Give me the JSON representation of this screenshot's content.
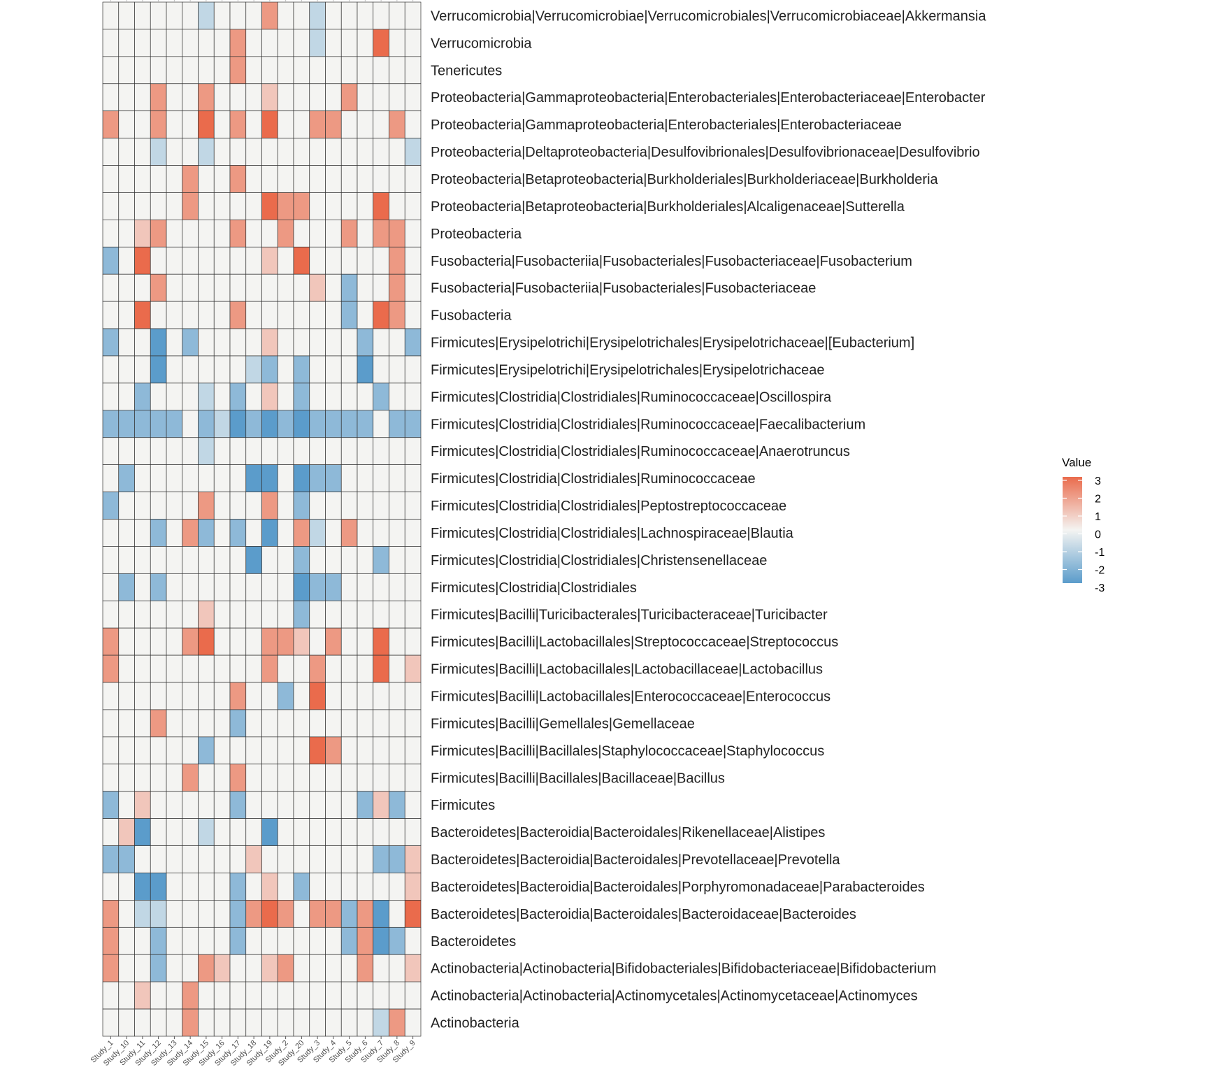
{
  "chart_data": {
    "type": "heatmap",
    "columns": [
      "Study_1",
      "Study_10",
      "Study_11",
      "Study_12",
      "Study_13",
      "Study_14",
      "Study_15",
      "Study_16",
      "Study_17",
      "Study_18",
      "Study_19",
      "Study_2",
      "Study_20",
      "Study_3",
      "Study_4",
      "Study_5",
      "Study_6",
      "Study_7",
      "Study_8",
      "Study_9"
    ],
    "rows": [
      "Verrucomicrobia|Verrucomicrobiae|Verrucomicrobiales|Verrucomicrobiaceae|Akkermansia",
      "Verrucomicrobia",
      "Tenericutes",
      "Proteobacteria|Gammaproteobacteria|Enterobacteriales|Enterobacteriaceae|Enterobacter",
      "Proteobacteria|Gammaproteobacteria|Enterobacteriales|Enterobacteriaceae",
      "Proteobacteria|Deltaproteobacteria|Desulfovibrionales|Desulfovibrionaceae|Desulfovibrio",
      "Proteobacteria|Betaproteobacteria|Burkholderiales|Burkholderiaceae|Burkholderia",
      "Proteobacteria|Betaproteobacteria|Burkholderiales|Alcaligenaceae|Sutterella",
      "Proteobacteria",
      "Fusobacteria|Fusobacteriia|Fusobacteriales|Fusobacteriaceae|Fusobacterium",
      "Fusobacteria|Fusobacteriia|Fusobacteriales|Fusobacteriaceae",
      "Fusobacteria",
      "Firmicutes|Erysipelotrichi|Erysipelotrichales|Erysipelotrichaceae|[Eubacterium]",
      "Firmicutes|Erysipelotrichi|Erysipelotrichales|Erysipelotrichaceae",
      "Firmicutes|Clostridia|Clostridiales|Ruminococcaceae|Oscillospira",
      "Firmicutes|Clostridia|Clostridiales|Ruminococcaceae|Faecalibacterium",
      "Firmicutes|Clostridia|Clostridiales|Ruminococcaceae|Anaerotruncus",
      "Firmicutes|Clostridia|Clostridiales|Ruminococcaceae",
      "Firmicutes|Clostridia|Clostridiales|Peptostreptococcaceae",
      "Firmicutes|Clostridia|Clostridiales|Lachnospiraceae|Blautia",
      "Firmicutes|Clostridia|Clostridiales|Christensenellaceae",
      "Firmicutes|Clostridia|Clostridiales",
      "Firmicutes|Bacilli|Turicibacterales|Turicibacteraceae|Turicibacter",
      "Firmicutes|Bacilli|Lactobacillales|Streptococcaceae|Streptococcus",
      "Firmicutes|Bacilli|Lactobacillales|Lactobacillaceae|Lactobacillus",
      "Firmicutes|Bacilli|Lactobacillales|Enterococcaceae|Enterococcus",
      "Firmicutes|Bacilli|Gemellales|Gemellaceae",
      "Firmicutes|Bacilli|Bacillales|Staphylococcaceae|Staphylococcus",
      "Firmicutes|Bacilli|Bacillales|Bacillaceae|Bacillus",
      "Firmicutes",
      "Bacteroidetes|Bacteroidia|Bacteroidales|Rikenellaceae|Alistipes",
      "Bacteroidetes|Bacteroidia|Bacteroidales|Prevotellaceae|Prevotella",
      "Bacteroidetes|Bacteroidia|Bacteroidales|Porphyromonadaceae|Parabacteroides",
      "Bacteroidetes|Bacteroidia|Bacteroidales|Bacteroidaceae|Bacteroides",
      "Bacteroidetes",
      "Actinobacteria|Actinobacteria|Bifidobacteriales|Bifidobacteriaceae|Bifidobacterium",
      "Actinobacteria|Actinobacteria|Actinomycetales|Actinomycetaceae|Actinomyces",
      "Actinobacteria"
    ],
    "values": [
      [
        0,
        0,
        0,
        0,
        0,
        0,
        -1,
        0,
        0,
        0,
        2,
        0,
        0,
        -1,
        0,
        0,
        0,
        0,
        0,
        0
      ],
      [
        0,
        0,
        0,
        0,
        0,
        0,
        0,
        0,
        2,
        0,
        0,
        0,
        0,
        -1,
        0,
        0,
        0,
        3,
        0,
        0
      ],
      [
        0,
        0,
        0,
        0,
        0,
        0,
        0,
        0,
        2,
        0,
        0,
        0,
        0,
        0,
        0,
        0,
        0,
        0,
        0,
        0
      ],
      [
        0,
        0,
        0,
        2,
        0,
        0,
        2,
        0,
        0,
        0,
        1,
        0,
        0,
        0,
        0,
        2,
        0,
        0,
        0,
        0
      ],
      [
        2,
        0,
        0,
        2,
        0,
        0,
        3,
        0,
        2,
        0,
        3,
        0,
        0,
        2,
        2,
        0,
        0,
        0,
        2,
        0
      ],
      [
        0,
        0,
        0,
        -1,
        0,
        0,
        -1,
        0,
        0,
        0,
        0,
        0,
        0,
        0,
        0,
        0,
        0,
        0,
        0,
        -1
      ],
      [
        0,
        0,
        0,
        0,
        0,
        2,
        0,
        0,
        2,
        0,
        0,
        0,
        0,
        0,
        0,
        0,
        0,
        0,
        0,
        0
      ],
      [
        0,
        0,
        0,
        0,
        0,
        2,
        0,
        0,
        0,
        0,
        3,
        2,
        2,
        0,
        0,
        0,
        0,
        3,
        0,
        0
      ],
      [
        0,
        0,
        1,
        2,
        0,
        0,
        0,
        0,
        2,
        0,
        0,
        2,
        0,
        0,
        0,
        2,
        0,
        2,
        2,
        0
      ],
      [
        -2,
        0,
        3,
        0,
        0,
        0,
        0,
        0,
        0,
        0,
        1,
        0,
        3,
        0,
        0,
        0,
        0,
        0,
        2,
        0
      ],
      [
        0,
        0,
        0,
        2,
        0,
        0,
        0,
        0,
        0,
        0,
        0,
        0,
        0,
        1,
        0,
        -2,
        0,
        0,
        2,
        0
      ],
      [
        0,
        0,
        3,
        0,
        0,
        0,
        0,
        0,
        2,
        0,
        0,
        0,
        0,
        0,
        0,
        -2,
        0,
        3,
        2,
        0
      ],
      [
        -2,
        0,
        0,
        -3,
        0,
        -2,
        0,
        0,
        0,
        0,
        1,
        0,
        0,
        0,
        0,
        0,
        -2,
        0,
        0,
        -2
      ],
      [
        0,
        0,
        0,
        -3,
        0,
        0,
        0,
        0,
        0,
        -1,
        -2,
        0,
        -2,
        0,
        0,
        0,
        -3,
        0,
        0,
        0
      ],
      [
        0,
        0,
        -2,
        0,
        0,
        0,
        -1,
        0,
        -2,
        0,
        1,
        0,
        -2,
        0,
        0,
        0,
        0,
        -2,
        0,
        0
      ],
      [
        -2,
        -2,
        -2,
        -2,
        -2,
        0,
        -2,
        -1,
        -3,
        -2,
        -3,
        -2,
        -3,
        -2,
        -2,
        -2,
        -2,
        0,
        -2,
        -2
      ],
      [
        0,
        0,
        0,
        0,
        0,
        0,
        -1,
        0,
        0,
        0,
        0,
        0,
        0,
        0,
        0,
        0,
        0,
        0,
        0,
        0
      ],
      [
        0,
        -2,
        0,
        0,
        0,
        0,
        0,
        0,
        0,
        -3,
        -3,
        0,
        -3,
        -2,
        -2,
        0,
        0,
        0,
        0,
        0
      ],
      [
        -2,
        0,
        0,
        0,
        0,
        0,
        2,
        0,
        0,
        0,
        2,
        0,
        -2,
        0,
        0,
        0,
        0,
        0,
        0,
        0
      ],
      [
        0,
        0,
        0,
        -2,
        0,
        2,
        -2,
        0,
        -2,
        0,
        -3,
        0,
        2,
        -1,
        0,
        2,
        0,
        0,
        0,
        0
      ],
      [
        0,
        0,
        0,
        0,
        0,
        0,
        0,
        0,
        0,
        -3,
        0,
        0,
        -2,
        0,
        0,
        0,
        0,
        -2,
        0,
        0
      ],
      [
        0,
        -2,
        0,
        -2,
        0,
        0,
        0,
        0,
        0,
        0,
        0,
        0,
        -3,
        -2,
        -2,
        0,
        0,
        0,
        0,
        0
      ],
      [
        0,
        0,
        0,
        0,
        0,
        0,
        1,
        0,
        0,
        0,
        0,
        0,
        -2,
        0,
        0,
        0,
        0,
        0,
        0,
        0
      ],
      [
        2,
        0,
        0,
        0,
        0,
        2,
        3,
        0,
        0,
        0,
        2,
        2,
        1,
        0,
        2,
        0,
        0,
        3,
        0,
        0
      ],
      [
        2,
        0,
        0,
        0,
        0,
        0,
        0,
        0,
        0,
        0,
        2,
        0,
        0,
        2,
        0,
        0,
        0,
        3,
        0,
        1
      ],
      [
        0,
        0,
        0,
        0,
        0,
        0,
        0,
        0,
        2,
        0,
        0,
        -2,
        0,
        3,
        0,
        0,
        0,
        0,
        0,
        0
      ],
      [
        0,
        0,
        0,
        2,
        0,
        0,
        0,
        0,
        -2,
        0,
        0,
        0,
        0,
        0,
        0,
        0,
        0,
        0,
        0,
        0
      ],
      [
        0,
        0,
        0,
        0,
        0,
        0,
        -2,
        0,
        0,
        0,
        0,
        0,
        0,
        3,
        2,
        0,
        0,
        0,
        0,
        0
      ],
      [
        0,
        0,
        0,
        0,
        0,
        2,
        0,
        0,
        2,
        0,
        0,
        0,
        0,
        0,
        0,
        0,
        0,
        0,
        0,
        0
      ],
      [
        -2,
        0,
        1,
        0,
        0,
        0,
        0,
        0,
        -2,
        0,
        0,
        0,
        0,
        0,
        0,
        0,
        -2,
        1,
        -2,
        0
      ],
      [
        0,
        1,
        -3,
        0,
        0,
        0,
        -1,
        0,
        0,
        0,
        -3,
        0,
        0,
        0,
        0,
        0,
        0,
        0,
        0,
        0
      ],
      [
        -2,
        -2,
        0,
        0,
        0,
        0,
        0,
        0,
        0,
        1,
        0,
        0,
        0,
        0,
        0,
        0,
        0,
        -2,
        -2,
        1
      ],
      [
        0,
        0,
        -3,
        -3,
        0,
        0,
        0,
        0,
        -2,
        0,
        1,
        0,
        -2,
        0,
        0,
        0,
        0,
        0,
        0,
        1
      ],
      [
        2,
        0,
        -1,
        -1,
        0,
        0,
        0,
        0,
        -2,
        2,
        3,
        2,
        0,
        2,
        2,
        -2,
        2,
        -3,
        0,
        3
      ],
      [
        2,
        0,
        0,
        -2,
        0,
        0,
        0,
        0,
        -2,
        0,
        0,
        0,
        0,
        0,
        0,
        -2,
        2,
        -3,
        -2,
        0
      ],
      [
        2,
        0,
        0,
        -2,
        0,
        0,
        2,
        1,
        0,
        0,
        1,
        2,
        0,
        0,
        0,
        0,
        2,
        0,
        0,
        1
      ],
      [
        0,
        0,
        1,
        0,
        0,
        2,
        0,
        0,
        0,
        0,
        0,
        0,
        0,
        0,
        0,
        0,
        0,
        0,
        0,
        0
      ],
      [
        0,
        0,
        0,
        0,
        0,
        2,
        0,
        0,
        0,
        0,
        0,
        0,
        0,
        0,
        0,
        0,
        0,
        -1,
        2,
        0
      ]
    ],
    "value_range": [
      -3,
      3
    ],
    "colors": {
      "low": "#5b9ccb",
      "mid": "#f4f4f2",
      "high": "#ea6b4c"
    },
    "legend": {
      "title": "Value",
      "ticks": [
        "3",
        "2",
        "1",
        "0",
        "-1",
        "-2",
        "-3"
      ],
      "placement": "right"
    }
  }
}
